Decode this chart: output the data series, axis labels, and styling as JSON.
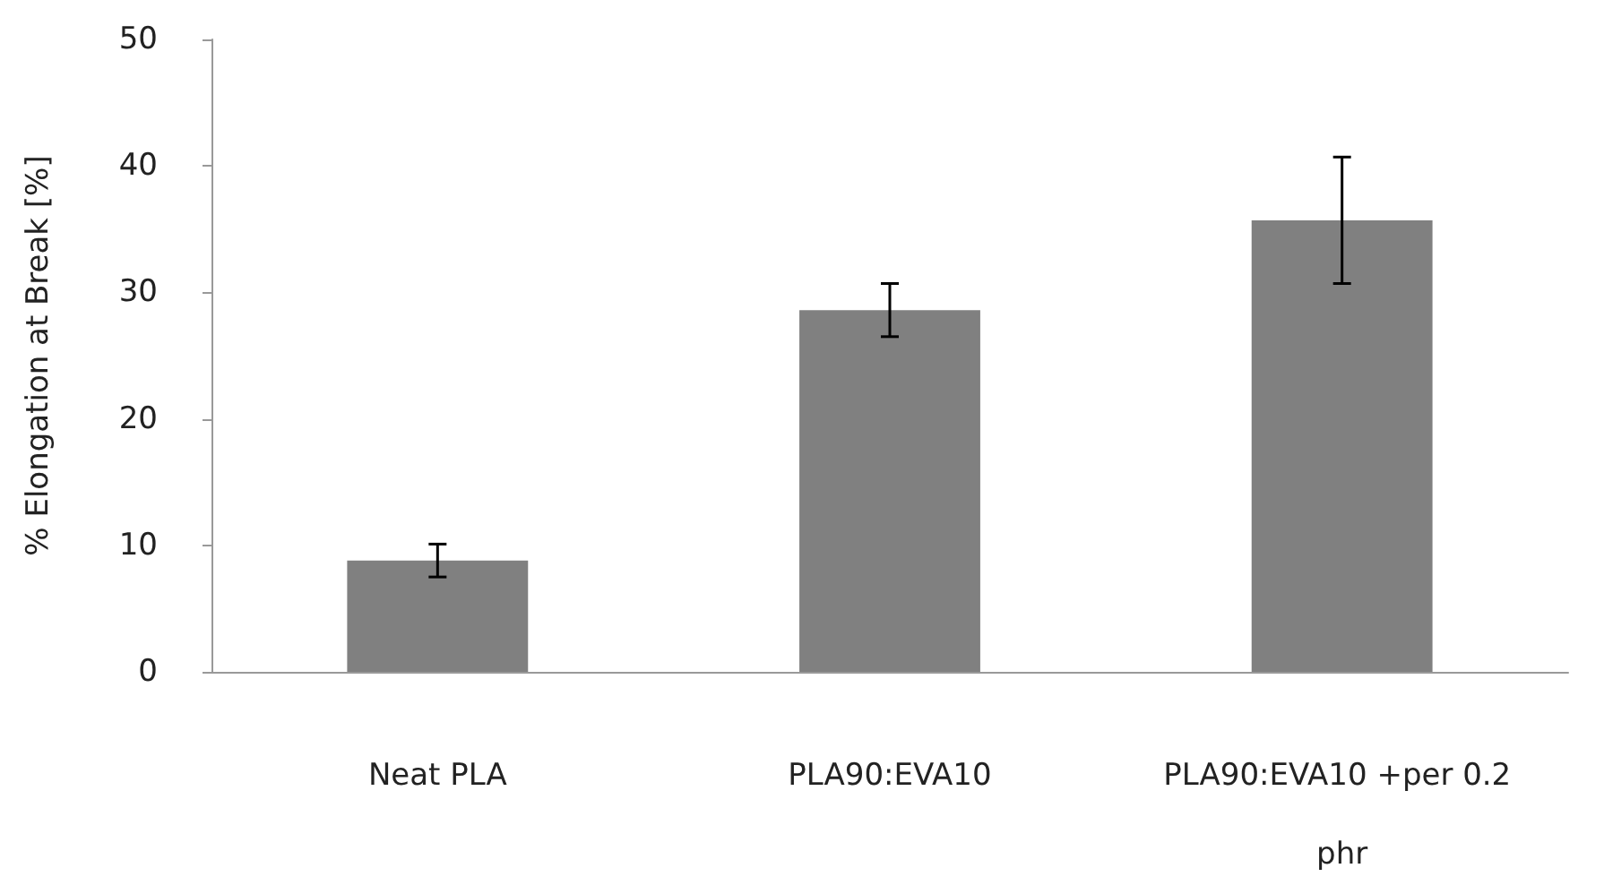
{
  "chart_data": {
    "type": "bar",
    "ylabel": "% Elongation at Break [%]",
    "categories": [
      "Neat PLA",
      "PLA90:EVA10",
      "PLA90:EVA10 +per 0.2 phr"
    ],
    "values": [
      8.8,
      28.6,
      35.7
    ],
    "color": "#808080",
    "errors": [
      1.3,
      2.1,
      5.0
    ],
    "ylim": [
      0,
      50
    ],
    "yticks": [
      0,
      10,
      20,
      30,
      40,
      50
    ],
    "grid": false
  }
}
